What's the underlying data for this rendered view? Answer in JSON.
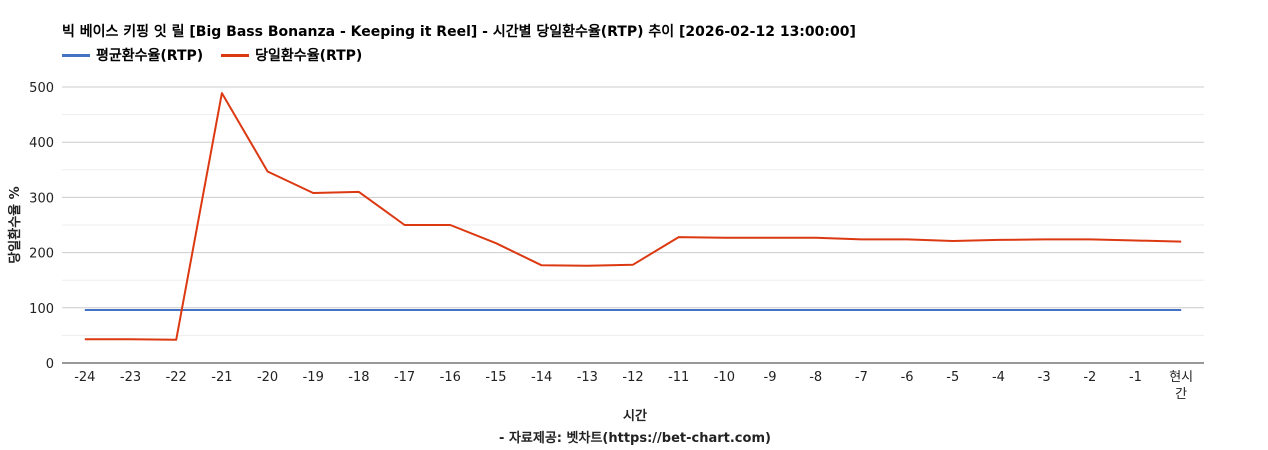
{
  "chart_data": {
    "type": "line",
    "title": "빅 베이스 키핑 잇 릴 [Big Bass Bonanza - Keeping it Reel] - 시간별 당일환수율(RTP) 추이 [2026-02-12 13:00:00]",
    "xlabel": "시간",
    "ylabel": "당일환수율 %",
    "source": "- 자료제공: 벳차트(https://bet-chart.com)",
    "categories": [
      "-24",
      "-23",
      "-22",
      "-21",
      "-20",
      "-19",
      "-18",
      "-17",
      "-16",
      "-15",
      "-14",
      "-13",
      "-12",
      "-11",
      "-10",
      "-9",
      "-8",
      "-7",
      "-6",
      "-5",
      "-4",
      "-3",
      "-2",
      "-1",
      "현시간"
    ],
    "ylim": [
      0,
      500
    ],
    "yticks": [
      0,
      100,
      200,
      300,
      400,
      500
    ],
    "grid": true,
    "legend_position": "top-left",
    "series": [
      {
        "name": "평균환수율(RTP)",
        "color": "#4472c4",
        "values": [
          96,
          96,
          96,
          96,
          96,
          96,
          96,
          96,
          96,
          96,
          96,
          96,
          96,
          96,
          96,
          96,
          96,
          96,
          96,
          96,
          96,
          96,
          96,
          96,
          96
        ]
      },
      {
        "name": "당일환수율(RTP)",
        "color": "#dc3912",
        "values": [
          43,
          43,
          42,
          489,
          347,
          308,
          310,
          250,
          250,
          217,
          177,
          176,
          178,
          228,
          227,
          227,
          227,
          224,
          224,
          221,
          223,
          224,
          224,
          222,
          220
        ]
      }
    ]
  }
}
